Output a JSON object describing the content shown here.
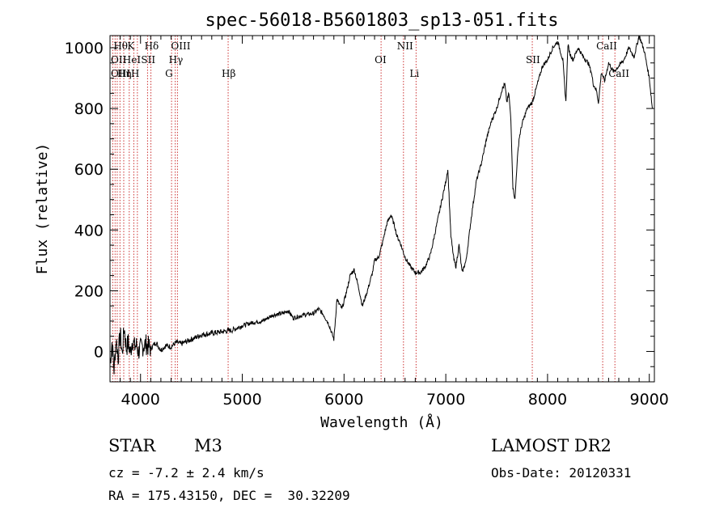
{
  "chart_data": {
    "type": "line",
    "title": "spec-56018-B5601803_sp13-051.fits",
    "xlabel": "Wavelength (Å)",
    "ylabel": "Flux (relative)",
    "xlim": [
      3700,
      9050
    ],
    "ylim": [
      -100,
      1040
    ],
    "x_ticks": [
      4000,
      5000,
      6000,
      7000,
      8000,
      9000
    ],
    "y_ticks": [
      0,
      200,
      400,
      600,
      800,
      1000
    ],
    "grid": false,
    "series": [
      {
        "x": [
          3700,
          3720,
          3740,
          3760,
          3780,
          3800,
          3820,
          3840,
          3860,
          3880,
          3900,
          3920,
          3940,
          3960,
          3980,
          4000,
          4050,
          4100,
          4150,
          4200,
          4250,
          4300,
          4350,
          4400,
          4500,
          4600,
          4700,
          4800,
          4900,
          5000,
          5100,
          5200,
          5300,
          5400,
          5450,
          5500,
          5600,
          5700,
          5750,
          5800,
          5850,
          5880,
          5900,
          5930,
          5980,
          6020,
          6060,
          6100,
          6150,
          6180,
          6230,
          6280,
          6300,
          6340,
          6380,
          6420,
          6460,
          6500,
          6520,
          6550,
          6600,
          6650,
          6700,
          6750,
          6800,
          6850,
          6900,
          6950,
          7000,
          7020,
          7050,
          7080,
          7100,
          7130,
          7160,
          7200,
          7250,
          7300,
          7350,
          7400,
          7450,
          7500,
          7550,
          7580,
          7600,
          7620,
          7640,
          7660,
          7680,
          7700,
          7720,
          7750,
          7800,
          7850,
          7900,
          7950,
          8000,
          8050,
          8100,
          8150,
          8180,
          8200,
          8220,
          8250,
          8300,
          8350,
          8400,
          8430,
          8450,
          8480,
          8500,
          8530,
          8560,
          8600,
          8650,
          8700,
          8750,
          8800,
          8850,
          8900,
          8950,
          9000,
          9030
        ],
        "y": [
          -40,
          30,
          -60,
          40,
          -20,
          60,
          -10,
          80,
          10,
          30,
          -5,
          40,
          15,
          20,
          0,
          10,
          25,
          10,
          30,
          5,
          20,
          15,
          30,
          25,
          40,
          55,
          60,
          65,
          70,
          85,
          95,
          100,
          120,
          125,
          135,
          110,
          120,
          125,
          140,
          120,
          90,
          60,
          40,
          170,
          140,
          190,
          250,
          270,
          200,
          150,
          200,
          260,
          300,
          310,
          360,
          420,
          450,
          410,
          380,
          360,
          310,
          280,
          260,
          260,
          280,
          320,
          400,
          480,
          560,
          600,
          380,
          300,
          280,
          350,
          260,
          300,
          440,
          560,
          620,
          700,
          760,
          800,
          860,
          880,
          820,
          850,
          760,
          540,
          500,
          620,
          700,
          750,
          800,
          820,
          880,
          940,
          960,
          1000,
          1020,
          960,
          820,
          1010,
          980,
          960,
          1000,
          970,
          950,
          920,
          880,
          860,
          820,
          920,
          890,
          950,
          920,
          940,
          960,
          1000,
          970,
          1040,
          990,
          900,
          800
        ]
      }
    ],
    "spectral_lines": [
      {
        "label": "Hθ",
        "x": 3798,
        "row": 0
      },
      {
        "label": "K",
        "x": 3934,
        "row": 0
      },
      {
        "label": "Hδ",
        "x": 4102,
        "row": 0
      },
      {
        "label": "OIII",
        "x": 4363,
        "row": 0
      },
      {
        "label": "NII",
        "x": 6584,
        "row": 0
      },
      {
        "label": "CaII",
        "x": 8542,
        "row": 0
      },
      {
        "label": "OII",
        "x": 3727,
        "row": 1
      },
      {
        "label": "HeI",
        "x": 3889,
        "row": 1
      },
      {
        "label": "SII",
        "x": 4069,
        "row": 1
      },
      {
        "label": "Hγ",
        "x": 4341,
        "row": 1
      },
      {
        "label": "OI",
        "x": 6364,
        "row": 1
      },
      {
        "label": "SII",
        "x": 7850,
        "row": 1
      },
      {
        "label": "OIII",
        "x": 3727,
        "row": 2
      },
      {
        "label": "Hη",
        "x": 3835,
        "row": 2
      },
      {
        "label": "H",
        "x": 3969,
        "row": 2
      },
      {
        "label": "G",
        "x": 4305,
        "row": 2
      },
      {
        "label": "Hβ",
        "x": 4861,
        "row": 2
      },
      {
        "label": "Li",
        "x": 6708,
        "row": 2
      },
      {
        "label": "CaII",
        "x": 8662,
        "row": 2
      }
    ],
    "extra_line_positions": [
      3750,
      3771,
      3889,
      3934,
      3969,
      4102,
      4305,
      4341,
      4363,
      4861,
      6364,
      6584,
      6708,
      7850,
      8542,
      8662
    ],
    "line_color": "#000000",
    "marker_color": "#cc3333"
  },
  "info": {
    "object_type": "STAR",
    "subclass": "M3",
    "survey": "LAMOST DR2",
    "redshift": "cz = -7.2 ± 2.4 km/s",
    "obs_date": "Obs-Date: 20120331",
    "coords": "RA = 175.43150, DEC =  30.32209"
  }
}
